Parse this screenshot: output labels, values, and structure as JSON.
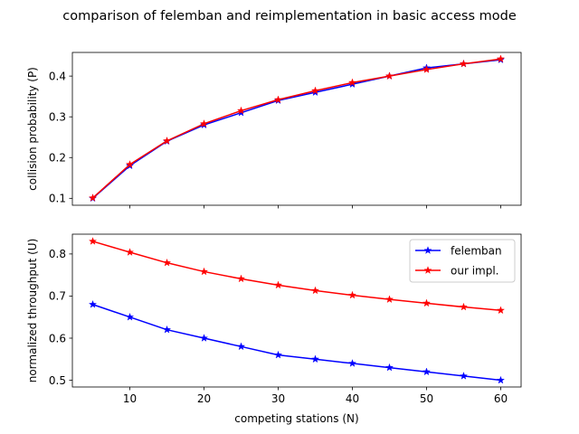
{
  "figure": {
    "title": "comparison of felemban and reimplementation in basic access mode"
  },
  "chart_data": [
    {
      "type": "line",
      "title": "",
      "xlabel": "",
      "ylabel": "collision probability (P)",
      "x": [
        5,
        10,
        15,
        20,
        25,
        30,
        35,
        40,
        45,
        50,
        55,
        60
      ],
      "xlim": [
        2.25,
        62.75
      ],
      "ylim": [
        0.083,
        0.458
      ],
      "xticks": [
        10,
        20,
        30,
        40,
        50,
        60
      ],
      "xtick_labels_visible": false,
      "yticks": [
        0.1,
        0.2,
        0.3,
        0.4
      ],
      "ytick_labels": [
        "0.1",
        "0.2",
        "0.3",
        "0.4"
      ],
      "grid": false,
      "legend": "none",
      "series": [
        {
          "name": "felemban",
          "color": "#0000ff",
          "marker": "star",
          "values": [
            0.1,
            0.18,
            0.24,
            0.28,
            0.31,
            0.34,
            0.36,
            0.38,
            0.4,
            0.42,
            0.43,
            0.44
          ]
        },
        {
          "name": "our impl.",
          "color": "#ff0000",
          "marker": "star",
          "values": [
            0.101,
            0.183,
            0.241,
            0.283,
            0.315,
            0.342,
            0.364,
            0.384,
            0.4,
            0.416,
            0.43,
            0.442
          ]
        }
      ]
    },
    {
      "type": "line",
      "title": "",
      "xlabel": "competing stations (N)",
      "ylabel": "normalized throughput (U)",
      "x": [
        5,
        10,
        15,
        20,
        25,
        30,
        35,
        40,
        45,
        50,
        55,
        60
      ],
      "xlim": [
        2.25,
        62.75
      ],
      "ylim": [
        0.484,
        0.847
      ],
      "xticks": [
        10,
        20,
        30,
        40,
        50,
        60
      ],
      "xtick_labels": [
        "10",
        "20",
        "30",
        "40",
        "50",
        "60"
      ],
      "xtick_labels_visible": true,
      "yticks": [
        0.5,
        0.6,
        0.7,
        0.8
      ],
      "ytick_labels": [
        "0.5",
        "0.6",
        "0.7",
        "0.8"
      ],
      "grid": false,
      "legend": "upper-right",
      "series": [
        {
          "name": "felemban",
          "color": "#0000ff",
          "marker": "star",
          "values": [
            0.68,
            0.65,
            0.62,
            0.6,
            0.58,
            0.56,
            0.55,
            0.54,
            0.53,
            0.52,
            0.51,
            0.5
          ]
        },
        {
          "name": "our impl.",
          "color": "#ff0000",
          "marker": "star",
          "values": [
            0.83,
            0.804,
            0.779,
            0.758,
            0.741,
            0.726,
            0.713,
            0.702,
            0.692,
            0.683,
            0.674,
            0.666
          ]
        }
      ]
    }
  ]
}
